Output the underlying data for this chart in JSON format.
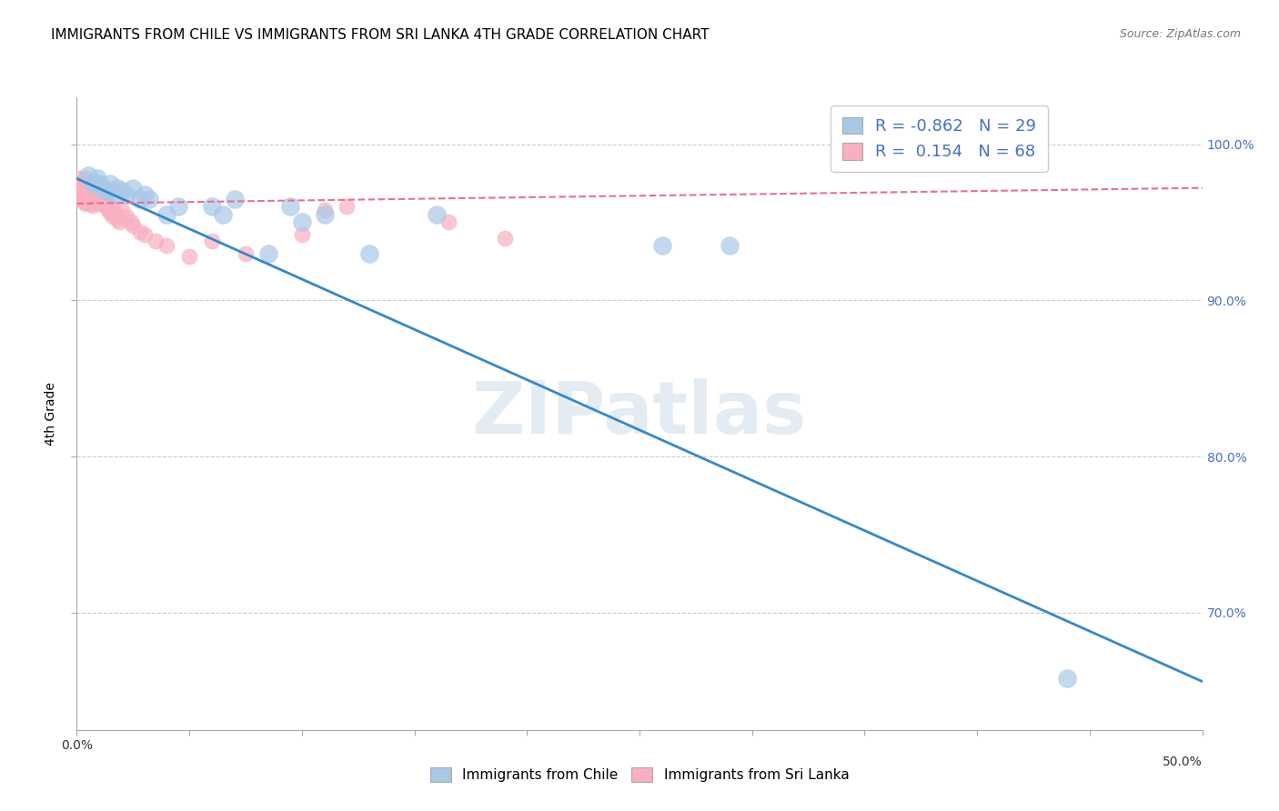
{
  "title": "IMMIGRANTS FROM CHILE VS IMMIGRANTS FROM SRI LANKA 4TH GRADE CORRELATION CHART",
  "source": "Source: ZipAtlas.com",
  "ylabel": "4th Grade",
  "xlim": [
    0.0,
    0.5
  ],
  "ylim": [
    0.625,
    1.03
  ],
  "yticks": [
    0.7,
    0.8,
    0.9,
    1.0
  ],
  "ytick_labels": [
    "70.0%",
    "80.0%",
    "90.0%",
    "100.0%"
  ],
  "xticks": [
    0.0,
    0.05,
    0.1,
    0.15,
    0.2,
    0.25,
    0.3,
    0.35,
    0.4,
    0.45,
    0.5
  ],
  "blue_scatter_color": "#a8c8e8",
  "pink_scatter_color": "#f8b0c0",
  "blue_line_color": "#3388cc",
  "pink_line_color": "#e87090",
  "legend_blue_color": "#a8c8e8",
  "legend_pink_color": "#f8b0c0",
  "blue_R": -0.862,
  "blue_N": 29,
  "pink_R": 0.154,
  "pink_N": 68,
  "blue_scatter_x": [
    0.005,
    0.007,
    0.009,
    0.01,
    0.012,
    0.013,
    0.015,
    0.017,
    0.018,
    0.02,
    0.022,
    0.025,
    0.028,
    0.03,
    0.032,
    0.04,
    0.045,
    0.06,
    0.065,
    0.07,
    0.085,
    0.095,
    0.1,
    0.11,
    0.13,
    0.16,
    0.26,
    0.29,
    0.44
  ],
  "blue_scatter_y": [
    0.98,
    0.975,
    0.978,
    0.975,
    0.972,
    0.97,
    0.975,
    0.968,
    0.972,
    0.97,
    0.968,
    0.972,
    0.965,
    0.968,
    0.965,
    0.955,
    0.96,
    0.96,
    0.955,
    0.965,
    0.93,
    0.96,
    0.95,
    0.955,
    0.93,
    0.955,
    0.935,
    0.935,
    0.658
  ],
  "pink_scatter_x": [
    0.001,
    0.001,
    0.001,
    0.002,
    0.002,
    0.002,
    0.002,
    0.003,
    0.003,
    0.003,
    0.003,
    0.004,
    0.004,
    0.004,
    0.004,
    0.004,
    0.005,
    0.005,
    0.005,
    0.005,
    0.006,
    0.006,
    0.006,
    0.006,
    0.007,
    0.007,
    0.007,
    0.007,
    0.008,
    0.008,
    0.008,
    0.009,
    0.009,
    0.009,
    0.01,
    0.01,
    0.01,
    0.011,
    0.011,
    0.012,
    0.012,
    0.013,
    0.013,
    0.014,
    0.014,
    0.015,
    0.015,
    0.016,
    0.016,
    0.017,
    0.018,
    0.019,
    0.02,
    0.022,
    0.024,
    0.025,
    0.028,
    0.03,
    0.035,
    0.04,
    0.05,
    0.06,
    0.075,
    0.1,
    0.11,
    0.12,
    0.165,
    0.19
  ],
  "pink_scatter_y": [
    0.978,
    0.975,
    0.97,
    0.975,
    0.972,
    0.968,
    0.965,
    0.975,
    0.972,
    0.968,
    0.963,
    0.978,
    0.974,
    0.97,
    0.966,
    0.962,
    0.976,
    0.972,
    0.968,
    0.964,
    0.974,
    0.97,
    0.966,
    0.962,
    0.973,
    0.969,
    0.965,
    0.961,
    0.972,
    0.968,
    0.964,
    0.971,
    0.967,
    0.963,
    0.97,
    0.966,
    0.962,
    0.968,
    0.964,
    0.966,
    0.962,
    0.964,
    0.96,
    0.962,
    0.958,
    0.96,
    0.956,
    0.958,
    0.954,
    0.956,
    0.952,
    0.95,
    0.958,
    0.954,
    0.95,
    0.948,
    0.944,
    0.942,
    0.938,
    0.935,
    0.928,
    0.938,
    0.93,
    0.942,
    0.958,
    0.96,
    0.95,
    0.94
  ],
  "blue_line_x": [
    0.0,
    0.5
  ],
  "blue_line_y": [
    0.978,
    0.656
  ],
  "pink_line_x": [
    0.0,
    0.5
  ],
  "pink_line_y": [
    0.962,
    0.972
  ],
  "watermark": "ZIPatlas",
  "grid_color": "#cccccc",
  "spine_color": "#aaaaaa",
  "tick_color": "#4472c4",
  "text_color_blue": "#4472c4",
  "bottom_legend_labels": [
    "Immigrants from Chile",
    "Immigrants from Sri Lanka"
  ]
}
